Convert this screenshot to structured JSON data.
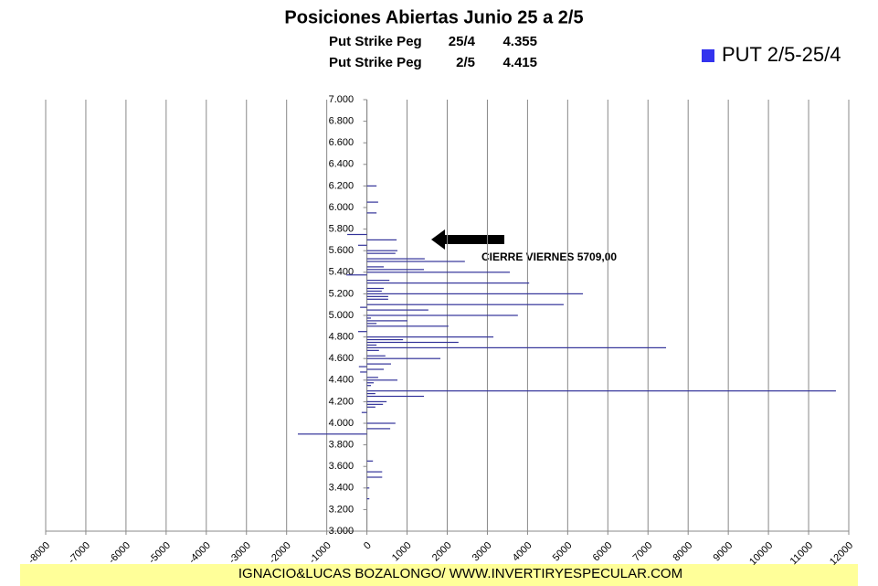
{
  "chart_data": {
    "type": "bar",
    "orientation": "horizontal",
    "title": "Posiciones Abiertas Junio 25 a 2/5",
    "subtitle_rows": [
      [
        "Put Strike Peg",
        "25/4",
        "4.355"
      ],
      [
        "Put Strike Peg",
        "2/5",
        "4.415"
      ]
    ],
    "annotation": "CIERRE VIERNES 5709,00",
    "footer": "IGNACIO&LUCAS BOZALONGO/ WWW.INVERTIRYESPECULAR.COM",
    "categories": [
      6200,
      6050,
      5950,
      5750,
      5700,
      5650,
      5600,
      5575,
      5525,
      5500,
      5450,
      5425,
      5400,
      5375,
      5325,
      5300,
      5250,
      5225,
      5200,
      5175,
      5150,
      5100,
      5075,
      5050,
      5000,
      4975,
      4950,
      4925,
      4900,
      4850,
      4800,
      4775,
      4750,
      4725,
      4700,
      4675,
      4625,
      4600,
      4550,
      4525,
      4500,
      4475,
      4425,
      4400,
      4375,
      4350,
      4300,
      4275,
      4250,
      4200,
      4175,
      4150,
      4100,
      4000,
      3950,
      3900,
      3650,
      3550,
      3500,
      3400,
      3300
    ],
    "series": [
      {
        "name": "PUT 2/5-25/4",
        "color": "#33339a",
        "legend_color": "#3333ee",
        "values": [
          240,
          280,
          240,
          -490,
          740,
          -220,
          760,
          710,
          1440,
          2440,
          420,
          1420,
          3560,
          -510,
          560,
          4040,
          420,
          370,
          5380,
          530,
          530,
          4900,
          -170,
          1530,
          3760,
          100,
          1010,
          240,
          2030,
          -220,
          3150,
          900,
          2280,
          240,
          7450,
          300,
          460,
          1830,
          600,
          -200,
          420,
          -170,
          280,
          760,
          170,
          100,
          11680,
          210,
          1420,
          490,
          400,
          210,
          -130,
          710,
          580,
          -1720,
          150,
          380,
          380,
          60,
          60
        ]
      }
    ],
    "xlim": [
      -8000,
      12000
    ],
    "xticks": [
      -8000,
      -7000,
      -6000,
      -5000,
      -4000,
      -3000,
      -2000,
      -1000,
      0,
      1000,
      2000,
      3000,
      4000,
      5000,
      6000,
      7000,
      8000,
      9000,
      10000,
      11000,
      12000
    ],
    "ylim": [
      3000,
      7000
    ],
    "yticks": [
      {
        "value": 3000,
        "label": "3.000"
      },
      {
        "value": 3200,
        "label": "3.200"
      },
      {
        "value": 3400,
        "label": "3.400"
      },
      {
        "value": 3600,
        "label": "3.600"
      },
      {
        "value": 3800,
        "label": "3.800"
      },
      {
        "value": 4000,
        "label": "4.000"
      },
      {
        "value": 4200,
        "label": "4.200"
      },
      {
        "value": 4400,
        "label": "4.400"
      },
      {
        "value": 4600,
        "label": "4.600"
      },
      {
        "value": 4800,
        "label": "4.800"
      },
      {
        "value": 5000,
        "label": "5.000"
      },
      {
        "value": 5200,
        "label": "5.200"
      },
      {
        "value": 5400,
        "label": "5.400"
      },
      {
        "value": 5600,
        "label": "5.600"
      },
      {
        "value": 5800,
        "label": "5.800"
      },
      {
        "value": 6000,
        "label": "6.000"
      },
      {
        "value": 6200,
        "label": "6.200"
      },
      {
        "value": 6400,
        "label": "6.400"
      },
      {
        "value": 6600,
        "label": "6.600"
      },
      {
        "value": 6800,
        "label": "6.800"
      },
      {
        "value": 7000,
        "label": "7.000"
      }
    ],
    "grid": true,
    "legend": "top-right"
  }
}
